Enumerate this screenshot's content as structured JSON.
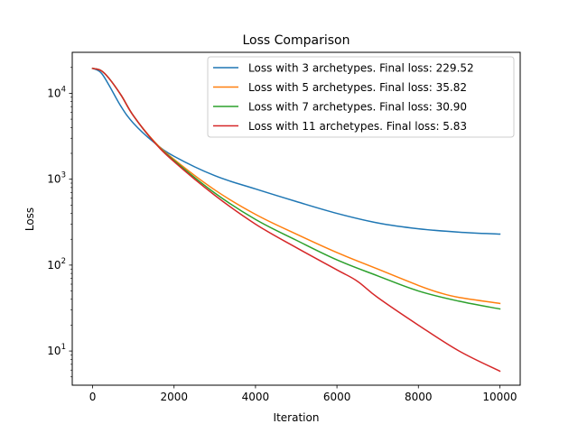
{
  "chart_data": {
    "type": "line",
    "title": "Loss Comparison",
    "xlabel": "Iteration",
    "ylabel": "Loss",
    "yscale": "log",
    "xlim": [
      -500,
      10500
    ],
    "ylim": [
      4.0,
      30000
    ],
    "xticks": [
      0,
      2000,
      4000,
      6000,
      8000,
      10000
    ],
    "xtick_labels": [
      "0",
      "2000",
      "4000",
      "6000",
      "8000",
      "10000"
    ],
    "yticks": [
      10,
      100,
      1000,
      10000
    ],
    "ytick_labels": [
      {
        "base": "10",
        "exp": "1"
      },
      {
        "base": "10",
        "exp": "2"
      },
      {
        "base": "10",
        "exp": "3"
      },
      {
        "base": "10",
        "exp": "4"
      }
    ],
    "grid": false,
    "legend_position": "top-right",
    "series": [
      {
        "name": "Loss with 3 archetypes. Final loss: 229.52",
        "color": "#1f77b4",
        "x": [
          0,
          200,
          400,
          700,
          1000,
          1500,
          2000,
          3000,
          4000,
          5000,
          6000,
          7000,
          8000,
          9000,
          10000
        ],
        "y": [
          19500,
          17500,
          12500,
          7000,
          4500,
          2700,
          1850,
          1100,
          770,
          550,
          400,
          310,
          265,
          242,
          229.52
        ]
      },
      {
        "name": "Loss with 5 archetypes. Final loss: 35.82",
        "color": "#ff7f0e",
        "x": [
          0,
          200,
          400,
          700,
          1000,
          1500,
          2000,
          3000,
          4000,
          5000,
          6000,
          7000,
          8000,
          8500,
          9000,
          10000
        ],
        "y": [
          19500,
          18500,
          15000,
          9500,
          5500,
          2800,
          1700,
          750,
          390,
          230,
          140,
          90,
          58,
          48,
          42,
          35.82
        ]
      },
      {
        "name": "Loss with 7 archetypes. Final loss: 30.90",
        "color": "#2ca02c",
        "x": [
          0,
          200,
          400,
          700,
          1000,
          1500,
          2000,
          3000,
          4000,
          5000,
          6000,
          7000,
          8000,
          9000,
          10000
        ],
        "y": [
          19500,
          18500,
          15000,
          9500,
          5500,
          2750,
          1650,
          690,
          340,
          195,
          115,
          75,
          50,
          38,
          30.9
        ]
      },
      {
        "name": "Loss with 11 archetypes. Final loss: 5.83",
        "color": "#d62728",
        "x": [
          0,
          200,
          400,
          700,
          1000,
          1500,
          2000,
          3000,
          4000,
          5000,
          6000,
          6500,
          7000,
          8000,
          9000,
          10000
        ],
        "y": [
          19500,
          18500,
          15000,
          9500,
          5500,
          2750,
          1600,
          650,
          300,
          160,
          88,
          65,
          42,
          20,
          10,
          5.83
        ]
      }
    ]
  }
}
